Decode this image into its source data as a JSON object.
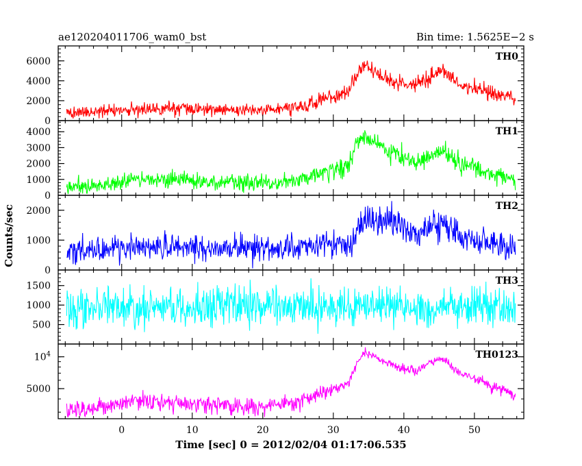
{
  "header": {
    "title": "ae120204011706_wam0_bst",
    "bin_time": "Bin time: 1.5625E−2 s"
  },
  "chart_data": {
    "type": "line",
    "xlabel": "Time [sec] 0 = 2012/02/04 01:17:06.535",
    "ylabel": "Counts/sec",
    "xlim": [
      -9,
      57
    ],
    "xticks": [
      0,
      10,
      20,
      30,
      40,
      50
    ],
    "xtick_labels": [
      "0",
      "10",
      "20",
      "30",
      "40",
      "50"
    ],
    "grid": false,
    "panels": [
      {
        "name": "TH0",
        "color": "#ff0000",
        "ylim": [
          0,
          7500
        ],
        "yticks": [
          0,
          2000,
          4000,
          6000
        ],
        "ytick_labels": [
          "0",
          "2000",
          "4000",
          "6000"
        ],
        "noise": 380,
        "profile": [
          [
            -8,
            700
          ],
          [
            -3,
            950
          ],
          [
            5,
            1250
          ],
          [
            12,
            1150
          ],
          [
            20,
            1000
          ],
          [
            25,
            1350
          ],
          [
            29,
            2200
          ],
          [
            32,
            3000
          ],
          [
            33.5,
            4600
          ],
          [
            34.5,
            5700
          ],
          [
            37,
            4300
          ],
          [
            40,
            3600
          ],
          [
            42,
            3700
          ],
          [
            44,
            4600
          ],
          [
            45.5,
            5200
          ],
          [
            48,
            3600
          ],
          [
            52,
            2900
          ],
          [
            56,
            2100
          ]
        ]
      },
      {
        "name": "TH1",
        "color": "#00ff00",
        "ylim": [
          0,
          4700
        ],
        "yticks": [
          0,
          1000,
          2000,
          3000,
          4000
        ],
        "ytick_labels": [
          "0",
          "1000",
          "2000",
          "3000",
          "4000"
        ],
        "noise": 300,
        "profile": [
          [
            -8,
            480
          ],
          [
            -3,
            600
          ],
          [
            2,
            1000
          ],
          [
            6,
            950
          ],
          [
            12,
            850
          ],
          [
            20,
            750
          ],
          [
            25,
            900
          ],
          [
            29,
            1500
          ],
          [
            32,
            1800
          ],
          [
            33.2,
            3200
          ],
          [
            34.5,
            3700
          ],
          [
            37,
            3000
          ],
          [
            40,
            2400
          ],
          [
            42,
            2100
          ],
          [
            44,
            2500
          ],
          [
            45.5,
            2800
          ],
          [
            48,
            2000
          ],
          [
            52,
            1400
          ],
          [
            56,
            1000
          ]
        ]
      },
      {
        "name": "TH2",
        "color": "#0000ff",
        "ylim": [
          0,
          2500
        ],
        "yticks": [
          0,
          1000,
          2000
        ],
        "ytick_labels": [
          "0",
          "1000",
          "2000"
        ],
        "noise": 260,
        "profile": [
          [
            -8,
            550
          ],
          [
            0,
            720
          ],
          [
            5,
            800
          ],
          [
            12,
            750
          ],
          [
            20,
            700
          ],
          [
            26,
            800
          ],
          [
            30,
            850
          ],
          [
            33,
            950
          ],
          [
            33.3,
            1400
          ],
          [
            35,
            1600
          ],
          [
            38,
            1700
          ],
          [
            40,
            1450
          ],
          [
            42,
            1250
          ],
          [
            44,
            1500
          ],
          [
            45.5,
            1550
          ],
          [
            48,
            1150
          ],
          [
            52,
            900
          ],
          [
            56,
            700
          ]
        ]
      },
      {
        "name": "TH3",
        "color": "#00ffff",
        "ylim": [
          0,
          1900
        ],
        "yticks": [
          500,
          1000,
          1500
        ],
        "ytick_labels": [
          "500",
          "1000",
          "1500"
        ],
        "noise": 330,
        "profile": [
          [
            -8,
            950
          ],
          [
            56,
            950
          ]
        ]
      },
      {
        "name": "TH0123",
        "color": "#ff00ff",
        "yscale": "log",
        "ylim": [
          2600,
          13200
        ],
        "yticks": [
          5000,
          10000
        ],
        "ytick_labels": [
          "5000",
          "10^4"
        ],
        "noise": 420,
        "profile": [
          [
            -8,
            3100
          ],
          [
            -3,
            3300
          ],
          [
            2,
            3900
          ],
          [
            6,
            3700
          ],
          [
            12,
            3500
          ],
          [
            20,
            3400
          ],
          [
            25,
            3800
          ],
          [
            29,
            4700
          ],
          [
            32,
            5400
          ],
          [
            33.3,
            8500
          ],
          [
            34.5,
            11000
          ],
          [
            37,
            9000
          ],
          [
            40,
            7800
          ],
          [
            42,
            7200
          ],
          [
            43.5,
            8600
          ],
          [
            45.5,
            9500
          ],
          [
            48,
            7000
          ],
          [
            52,
            5400
          ],
          [
            56,
            4300
          ]
        ]
      }
    ]
  }
}
